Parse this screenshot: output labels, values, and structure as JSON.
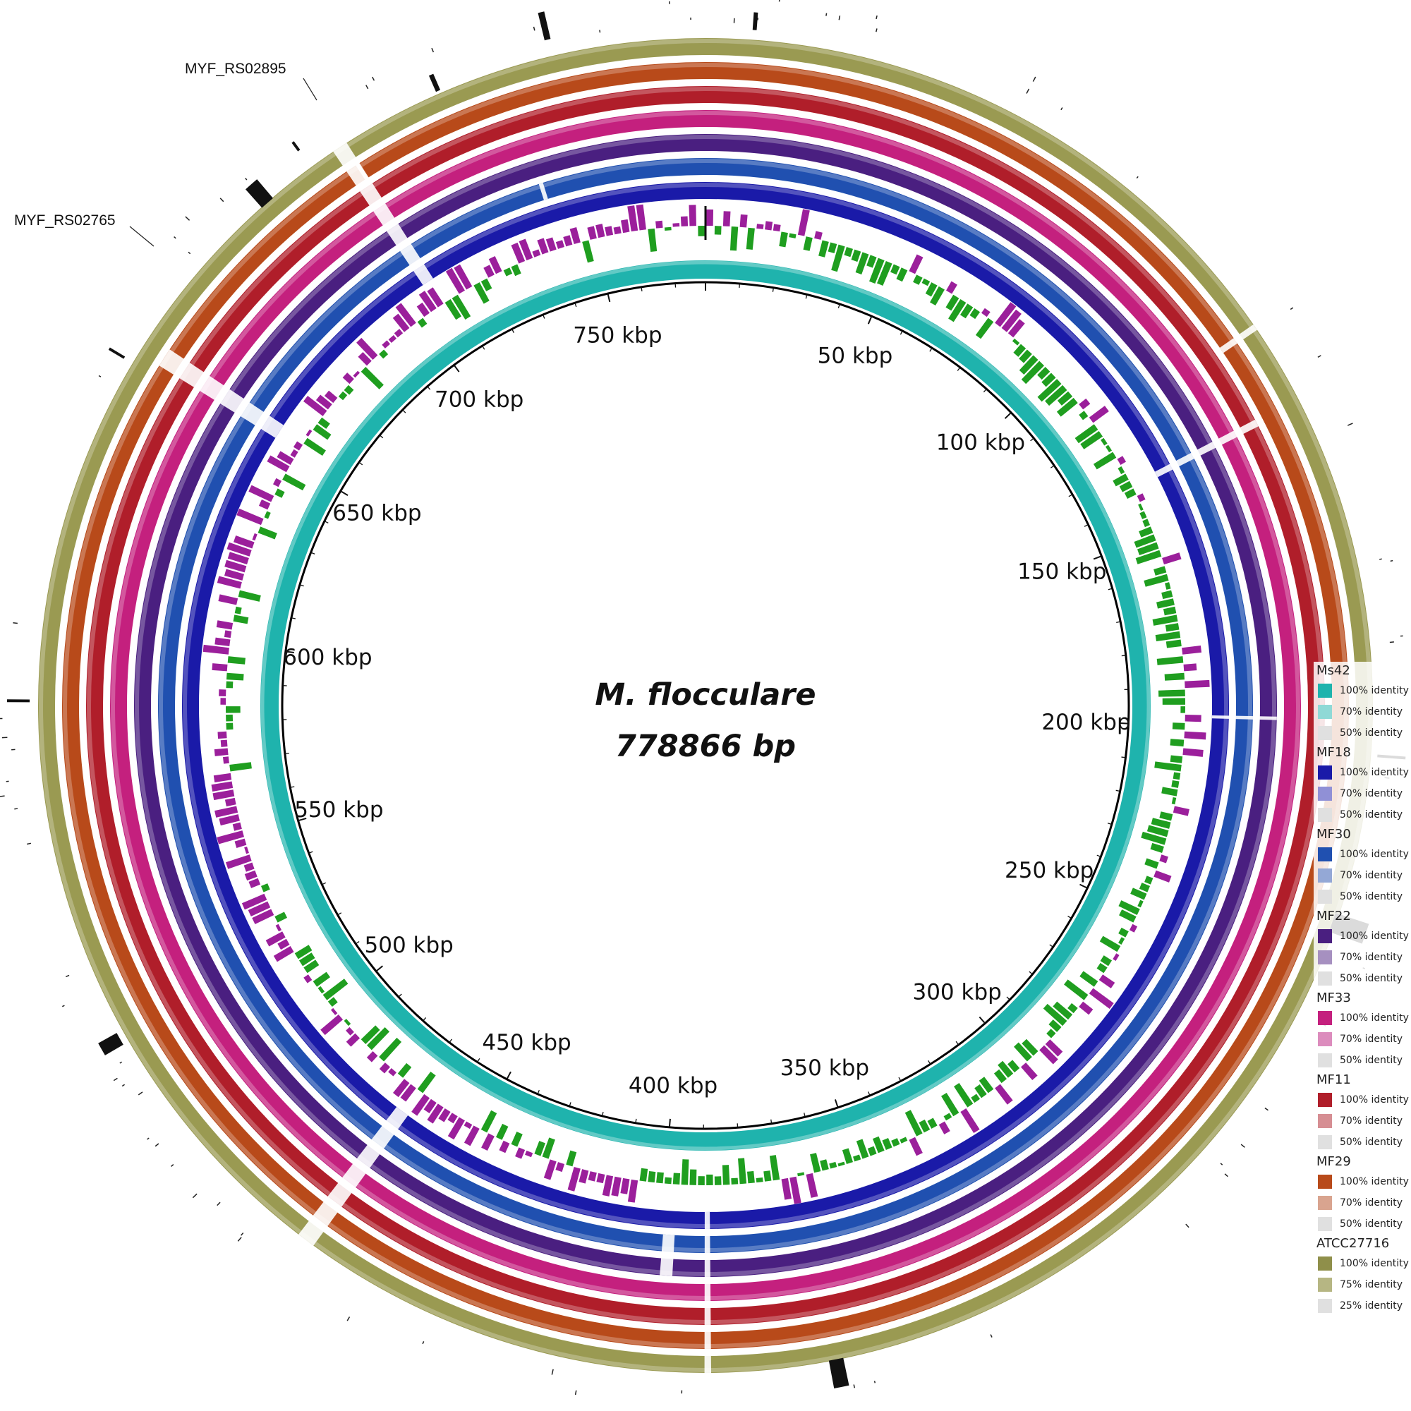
{
  "diagram": {
    "title": "M. flocculare",
    "subtitle": "778866 bp",
    "genome_length_bp": 778866,
    "tick_unit": "kbp",
    "tick_step_kbp": 50,
    "colors": {
      "ring_reference": "#1fb3ad",
      "backbone": "#000000",
      "gc_skew_positive": "#1f9e1f",
      "gc_skew_negative": "#9b1f9b",
      "gene_marker": "#111111",
      "gap": "#ffffff"
    },
    "rings": [
      {
        "name": "MF18",
        "color": "#1a1aa8"
      },
      {
        "name": "MF30",
        "color": "#2050b0"
      },
      {
        "name": "MF22",
        "color": "#4a1f80"
      },
      {
        "name": "MF33",
        "color": "#c4207e"
      },
      {
        "name": "MF11",
        "color": "#b01e2a"
      },
      {
        "name": "MF29",
        "color": "#b84a1a"
      },
      {
        "name": "ATCC27716",
        "color": "#9a9a52"
      }
    ],
    "gene_labels": [
      {
        "text": "MYF_RS02895"
      },
      {
        "text": "MYF_RS02765"
      }
    ]
  },
  "legend": [
    {
      "name": "Ms42",
      "entries": [
        {
          "label": "100% identity",
          "color": "#1fb3ad"
        },
        {
          "label": "70% identity",
          "color": "#8fd9d6"
        },
        {
          "label": "50% identity",
          "color": "#e0e0e0"
        }
      ]
    },
    {
      "name": "MF18",
      "entries": [
        {
          "label": "100% identity",
          "color": "#1a1aa8"
        },
        {
          "label": "70% identity",
          "color": "#9090d6"
        },
        {
          "label": "50% identity",
          "color": "#e0e0e0"
        }
      ]
    },
    {
      "name": "MF30",
      "entries": [
        {
          "label": "100% identity",
          "color": "#2050b0"
        },
        {
          "label": "70% identity",
          "color": "#94a8d6"
        },
        {
          "label": "50% identity",
          "color": "#e0e0e0"
        }
      ]
    },
    {
      "name": "MF22",
      "entries": [
        {
          "label": "100% identity",
          "color": "#4a1f80"
        },
        {
          "label": "70% identity",
          "color": "#a690c0"
        },
        {
          "label": "50% identity",
          "color": "#e0e0e0"
        }
      ]
    },
    {
      "name": "MF33",
      "entries": [
        {
          "label": "100% identity",
          "color": "#c4207e"
        },
        {
          "label": "70% identity",
          "color": "#dc8cbd"
        },
        {
          "label": "50% identity",
          "color": "#e0e0e0"
        }
      ]
    },
    {
      "name": "MF11",
      "entries": [
        {
          "label": "100% identity",
          "color": "#b01e2a"
        },
        {
          "label": "70% identity",
          "color": "#d68e93"
        },
        {
          "label": "50% identity",
          "color": "#e0e0e0"
        }
      ]
    },
    {
      "name": "MF29",
      "entries": [
        {
          "label": "100% identity",
          "color": "#b84a1a"
        },
        {
          "label": "70% identity",
          "color": "#d9a48f"
        },
        {
          "label": "50% identity",
          "color": "#e0e0e0"
        }
      ]
    },
    {
      "name": "ATCC27716",
      "entries": [
        {
          "label": "100% identity",
          "color": "#8f8f4a"
        },
        {
          "label": "75% identity",
          "color": "#b6b683"
        },
        {
          "label": "25% identity",
          "color": "#e0e0e0"
        }
      ]
    }
  ]
}
